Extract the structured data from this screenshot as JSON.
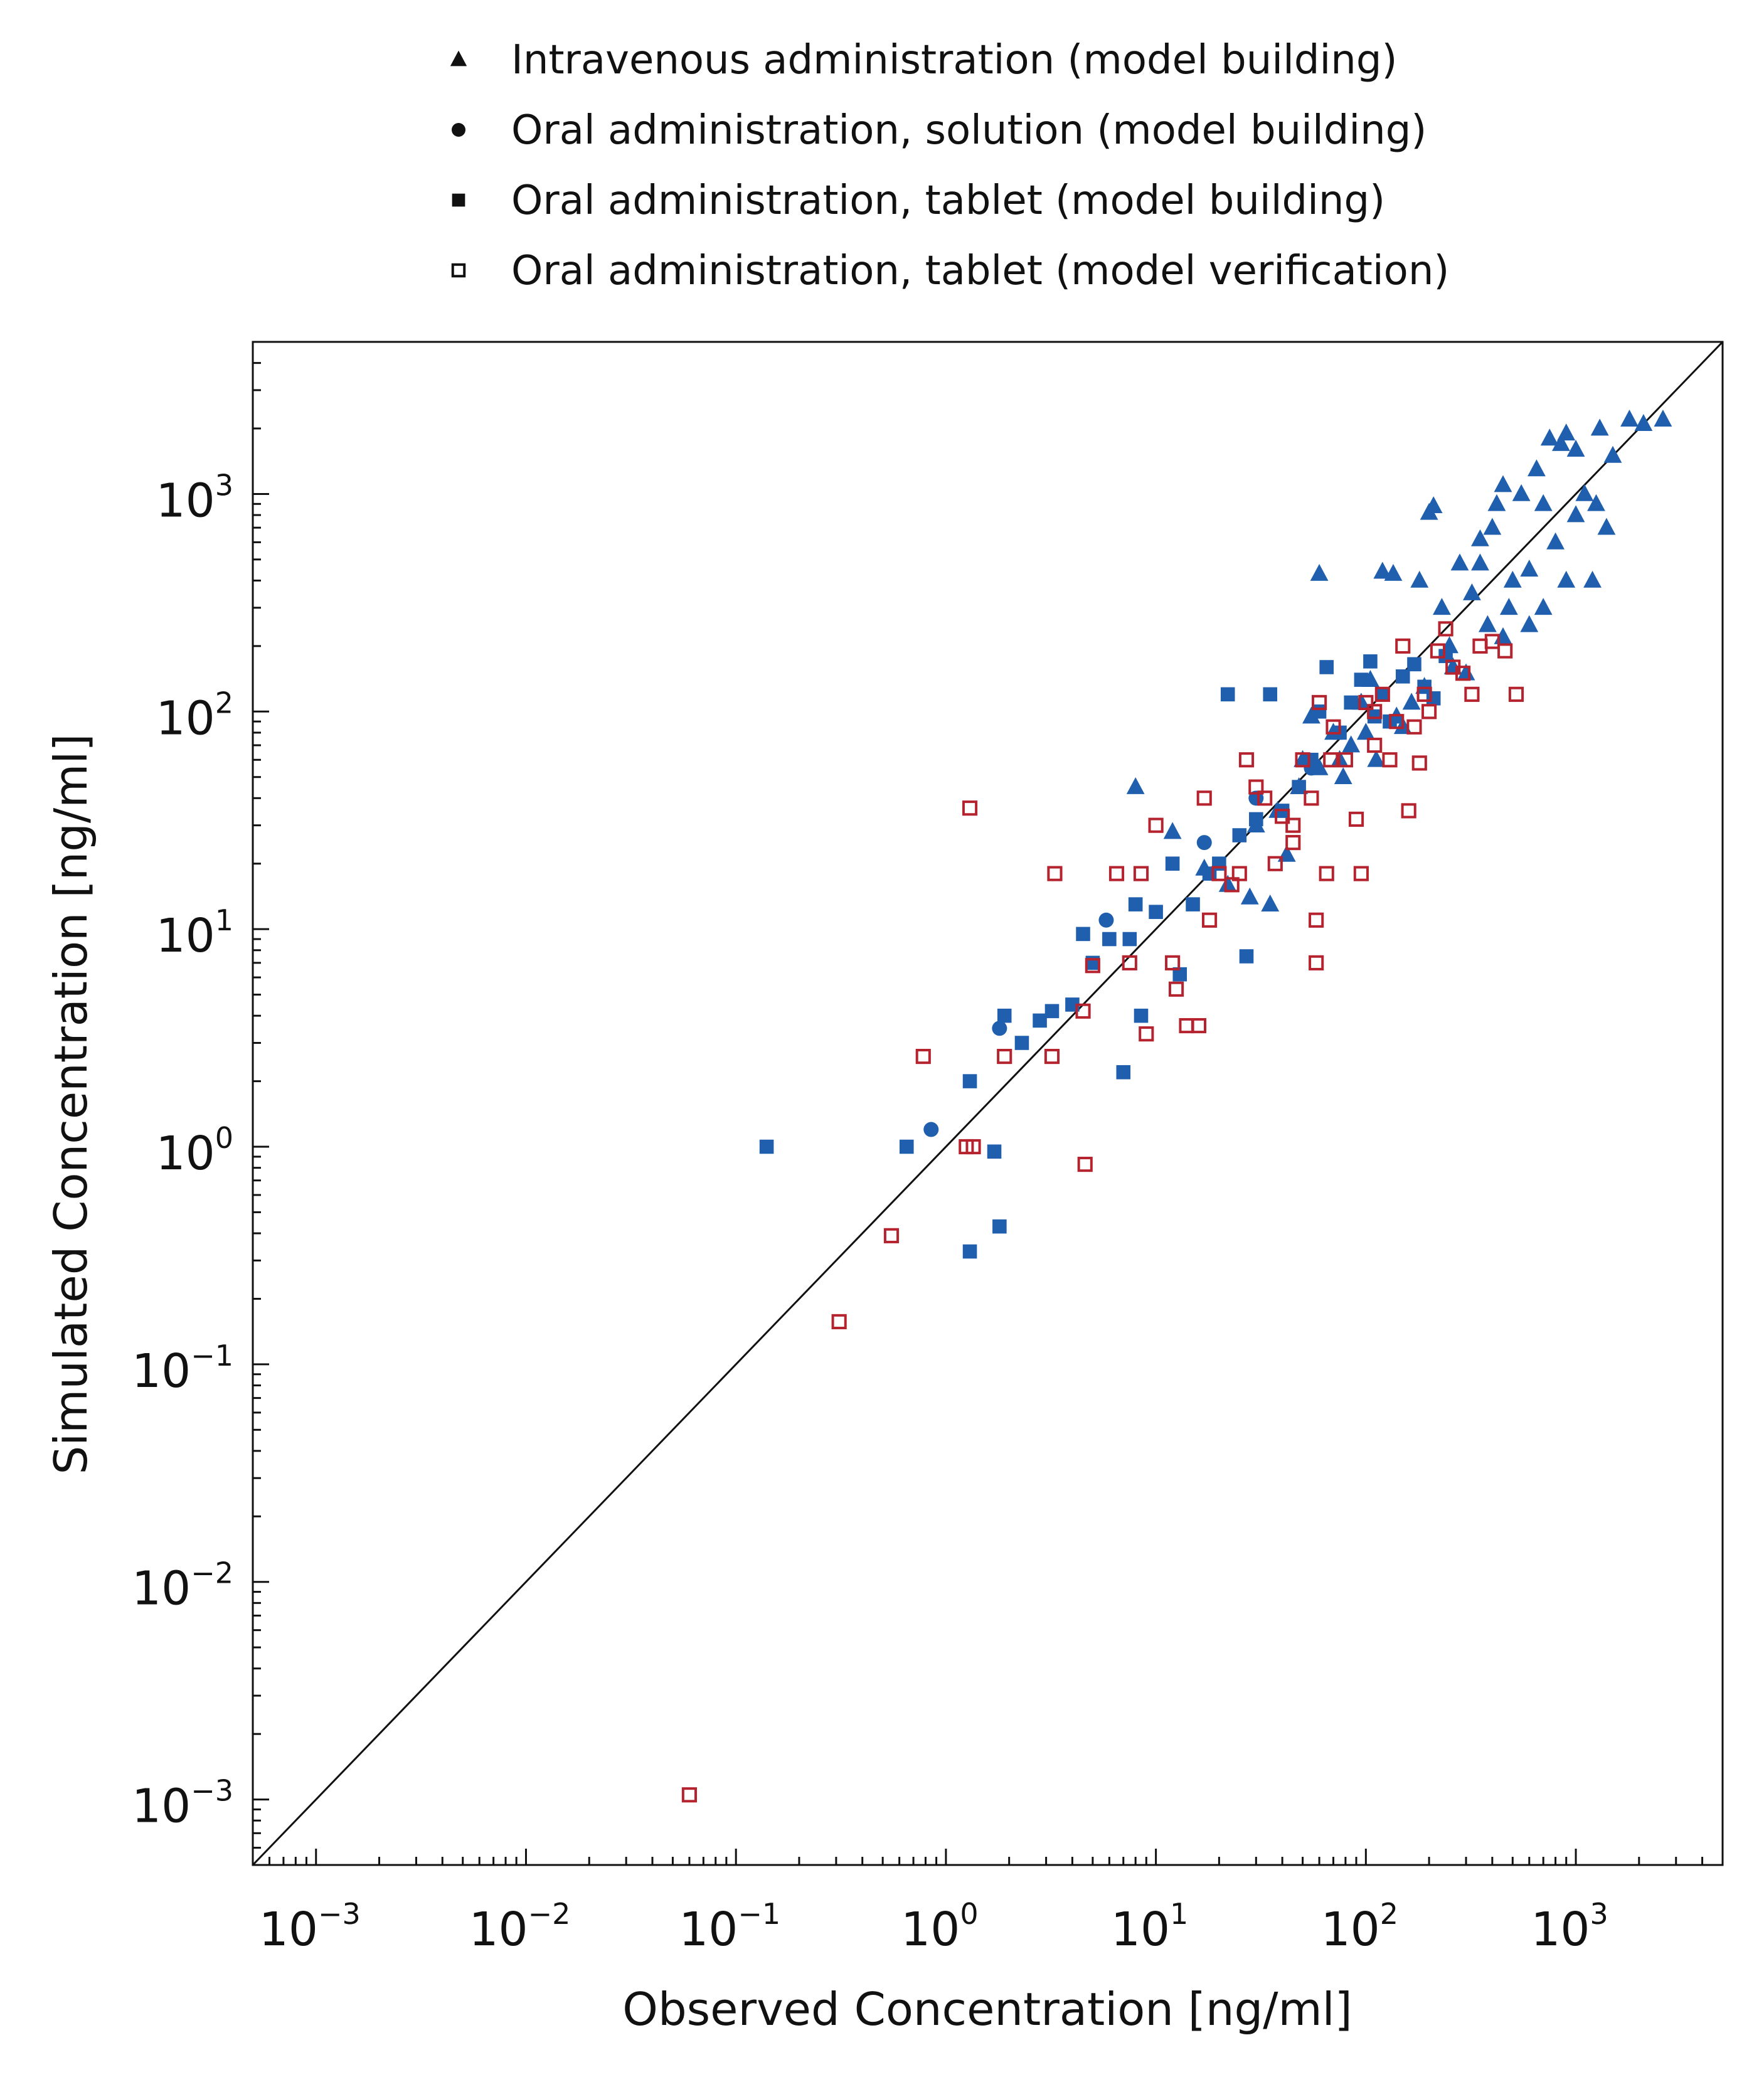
{
  "chart_data": {
    "type": "scatter",
    "xlabel": "Observed Concentration [ng/ml]",
    "ylabel": "Simulated Concentration [ng/ml]",
    "xscale": "log",
    "yscale": "log",
    "xlim": [
      0.0005,
      5000
    ],
    "ylim": [
      0.0005,
      5000
    ],
    "x_ticks": [
      0.001,
      0.01,
      0.1,
      1,
      10,
      100,
      1000
    ],
    "y_ticks": [
      0.001,
      0.01,
      0.1,
      1,
      10,
      100,
      1000
    ],
    "x_tick_labels": [
      {
        "base": "10",
        "exp": "−3"
      },
      {
        "base": "10",
        "exp": "−2"
      },
      {
        "base": "10",
        "exp": "−1"
      },
      {
        "base": "10",
        "exp": "0"
      },
      {
        "base": "10",
        "exp": "1"
      },
      {
        "base": "10",
        "exp": "2"
      },
      {
        "base": "10",
        "exp": "3"
      }
    ],
    "y_tick_labels": [
      {
        "base": "10",
        "exp": "−3"
      },
      {
        "base": "10",
        "exp": "−2"
      },
      {
        "base": "10",
        "exp": "−1"
      },
      {
        "base": "10",
        "exp": "0"
      },
      {
        "base": "10",
        "exp": "1"
      },
      {
        "base": "10",
        "exp": "2"
      },
      {
        "base": "10",
        "exp": "3"
      }
    ],
    "grid": false,
    "identity_line": true,
    "legend_position": "top",
    "legend": [
      {
        "label": "Intravenous administration (model building)",
        "marker": "triangle-filled"
      },
      {
        "label": "Oral administration, solution (model building)",
        "marker": "circle-filled"
      },
      {
        "label": "Oral administration, tablet (model building)",
        "marker": "square-filled"
      },
      {
        "label": "Oral administration, tablet (model verification)",
        "marker": "square-open"
      }
    ],
    "series": [
      {
        "marker": "triangle-filled",
        "color": "#1f5fae",
        "points": [
          [
            8,
            45
          ],
          [
            12,
            28
          ],
          [
            17,
            19
          ],
          [
            22,
            16
          ],
          [
            28,
            14
          ],
          [
            35,
            13
          ],
          [
            42,
            22
          ],
          [
            50,
            60
          ],
          [
            55,
            95
          ],
          [
            60,
            430
          ],
          [
            70,
            80
          ],
          [
            78,
            50
          ],
          [
            85,
            70
          ],
          [
            95,
            110
          ],
          [
            105,
            140
          ],
          [
            112,
            60
          ],
          [
            120,
            440
          ],
          [
            135,
            430
          ],
          [
            150,
            85
          ],
          [
            165,
            110
          ],
          [
            180,
            400
          ],
          [
            200,
            820
          ],
          [
            210,
            880
          ],
          [
            230,
            300
          ],
          [
            250,
            200
          ],
          [
            280,
            480
          ],
          [
            300,
            150
          ],
          [
            320,
            350
          ],
          [
            350,
            620
          ],
          [
            380,
            250
          ],
          [
            400,
            700
          ],
          [
            420,
            900
          ],
          [
            450,
            1100
          ],
          [
            480,
            300
          ],
          [
            500,
            400
          ],
          [
            550,
            1000
          ],
          [
            600,
            450
          ],
          [
            650,
            1300
          ],
          [
            700,
            300
          ],
          [
            750,
            1800
          ],
          [
            800,
            600
          ],
          [
            850,
            1700
          ],
          [
            900,
            1900
          ],
          [
            1000,
            800
          ],
          [
            1100,
            1000
          ],
          [
            1200,
            400
          ],
          [
            1300,
            2000
          ],
          [
            1500,
            1500
          ],
          [
            1800,
            2200
          ],
          [
            2100,
            2100
          ],
          [
            2600,
            2200
          ],
          [
            1400,
            700
          ],
          [
            900,
            400
          ],
          [
            700,
            900
          ],
          [
            600,
            250
          ],
          [
            450,
            220
          ],
          [
            350,
            480
          ],
          [
            260,
            160
          ],
          [
            190,
            130
          ],
          [
            140,
            95
          ],
          [
            100,
            80
          ],
          [
            75,
            60
          ],
          [
            60,
            55
          ],
          [
            48,
            45
          ],
          [
            38,
            35
          ],
          [
            30,
            30
          ],
          [
            1000,
            1600
          ],
          [
            1250,
            900
          ]
        ]
      },
      {
        "marker": "circle-filled",
        "color": "#1f5fae",
        "points": [
          [
            0.85,
            1.2
          ],
          [
            1.8,
            3.5
          ],
          [
            5.8,
            11
          ],
          [
            17,
            25
          ],
          [
            30,
            40
          ],
          [
            55,
            55
          ]
        ]
      },
      {
        "marker": "square-filled",
        "color": "#1f5fae",
        "points": [
          [
            0.14,
            1.0
          ],
          [
            0.65,
            1.0
          ],
          [
            1.3,
            2.0
          ],
          [
            1.3,
            0.33
          ],
          [
            1.7,
            0.95
          ],
          [
            1.8,
            0.43
          ],
          [
            1.9,
            4.0
          ],
          [
            2.3,
            3.0
          ],
          [
            2.8,
            3.8
          ],
          [
            3.2,
            4.2
          ],
          [
            4.0,
            4.5
          ],
          [
            4.5,
            9.5
          ],
          [
            5.0,
            7.0
          ],
          [
            6.0,
            9.0
          ],
          [
            7.0,
            2.2
          ],
          [
            7.5,
            9.0
          ],
          [
            8.0,
            13
          ],
          [
            8.5,
            4.0
          ],
          [
            10,
            12
          ],
          [
            12,
            20
          ],
          [
            13,
            6.2
          ],
          [
            15,
            13
          ],
          [
            18,
            18
          ],
          [
            20,
            20
          ],
          [
            22,
            120
          ],
          [
            25,
            27
          ],
          [
            27,
            7.5
          ],
          [
            30,
            32
          ],
          [
            35,
            120
          ],
          [
            40,
            35
          ],
          [
            48,
            45
          ],
          [
            55,
            60
          ],
          [
            60,
            100
          ],
          [
            65,
            160
          ],
          [
            75,
            80
          ],
          [
            85,
            110
          ],
          [
            95,
            140
          ],
          [
            105,
            170
          ],
          [
            110,
            95
          ],
          [
            120,
            120
          ],
          [
            130,
            90
          ],
          [
            150,
            145
          ],
          [
            170,
            165
          ],
          [
            190,
            130
          ],
          [
            210,
            115
          ],
          [
            240,
            180
          ]
        ]
      },
      {
        "marker": "square-open",
        "color": "#b5232f",
        "points": [
          [
            0.06,
            0.00105
          ],
          [
            0.31,
            0.157
          ],
          [
            0.55,
            0.39
          ],
          [
            0.78,
            2.6
          ],
          [
            1.25,
            1.0
          ],
          [
            1.35,
            1.0
          ],
          [
            1.3,
            36
          ],
          [
            1.9,
            2.6
          ],
          [
            3.3,
            18
          ],
          [
            3.2,
            2.6
          ],
          [
            4.5,
            4.2
          ],
          [
            4.6,
            0.83
          ],
          [
            5.0,
            6.8
          ],
          [
            6.5,
            18
          ],
          [
            7.5,
            7.0
          ],
          [
            8.5,
            18
          ],
          [
            9.0,
            3.3
          ],
          [
            10,
            30
          ],
          [
            12,
            7.0
          ],
          [
            12.5,
            5.3
          ],
          [
            14,
            3.6
          ],
          [
            16,
            3.6
          ],
          [
            17,
            40
          ],
          [
            18,
            11
          ],
          [
            20,
            18
          ],
          [
            23,
            16
          ],
          [
            25,
            18
          ],
          [
            27,
            60
          ],
          [
            30,
            45
          ],
          [
            33,
            40
          ],
          [
            37,
            20
          ],
          [
            40,
            33
          ],
          [
            45,
            25
          ],
          [
            50,
            60
          ],
          [
            55,
            40
          ],
          [
            58,
            7.0
          ],
          [
            60,
            110
          ],
          [
            65,
            18
          ],
          [
            70,
            85
          ],
          [
            80,
            60
          ],
          [
            90,
            32
          ],
          [
            95,
            18
          ],
          [
            100,
            110
          ],
          [
            110,
            70
          ],
          [
            120,
            120
          ],
          [
            130,
            60
          ],
          [
            140,
            90
          ],
          [
            150,
            200
          ],
          [
            160,
            35
          ],
          [
            170,
            85
          ],
          [
            180,
            58
          ],
          [
            200,
            100
          ],
          [
            220,
            190
          ],
          [
            240,
            240
          ],
          [
            260,
            160
          ],
          [
            290,
            150
          ],
          [
            320,
            120
          ],
          [
            350,
            200
          ],
          [
            400,
            210
          ],
          [
            460,
            190
          ],
          [
            520,
            120
          ],
          [
            58,
            11
          ],
          [
            45,
            30
          ],
          [
            68,
            60
          ],
          [
            110,
            100
          ],
          [
            190,
            120
          ]
        ]
      }
    ]
  }
}
